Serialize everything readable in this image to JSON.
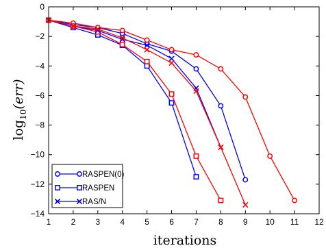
{
  "chart_data": {
    "type": "line",
    "title": "",
    "xlabel": "iterations",
    "ylabel": "log10(err)",
    "ylabel_parts": {
      "base": "log",
      "sub": "10",
      "arg": "(err)"
    },
    "xlim": [
      1,
      12
    ],
    "ylim": [
      -14,
      0
    ],
    "x_ticks": [
      1,
      2,
      3,
      4,
      5,
      6,
      7,
      8,
      9,
      10,
      11,
      12
    ],
    "y_ticks": [
      0,
      -2,
      -4,
      -6,
      -8,
      -10,
      -12,
      -14
    ],
    "grid": false,
    "legend_position": "bottom-left",
    "legend": [
      {
        "label": "RASPEN(0)",
        "color": "#0000ff",
        "marker": "circle"
      },
      {
        "label": "RASPEN",
        "color": "#0000ff",
        "marker": "square"
      },
      {
        "label": "RAS/N",
        "color": "#0000ff",
        "marker": "x"
      }
    ],
    "series": [
      {
        "name": "RASPEN(0)",
        "color": "#0000ff",
        "marker": "circle",
        "x": [
          1,
          2,
          3,
          4,
          5,
          6,
          7,
          8,
          9
        ],
        "y": [
          -0.9,
          -1.2,
          -1.4,
          -1.8,
          -2.5,
          -3.0,
          -4.2,
          -6.7,
          -11.7
        ]
      },
      {
        "name": "",
        "color": "#ff0000",
        "marker": "circle",
        "x": [
          1,
          2,
          3,
          4,
          5,
          6,
          7,
          8,
          9,
          10,
          11
        ],
        "y": [
          -0.9,
          -1.1,
          -1.4,
          -1.6,
          -2.25,
          -2.9,
          -3.25,
          -4.2,
          -6.1,
          -10.1,
          -13.1
        ]
      },
      {
        "name": "RASPEN",
        "color": "#0000ff",
        "marker": "square",
        "x": [
          1,
          2,
          3,
          4,
          5,
          6,
          7
        ],
        "y": [
          -0.9,
          -1.4,
          -1.9,
          -2.6,
          -4.0,
          -6.5,
          -11.5
        ]
      },
      {
        "name": "",
        "color": "#ff0000",
        "marker": "square",
        "x": [
          1,
          2,
          3,
          4,
          5,
          6,
          7,
          8
        ],
        "y": [
          -0.9,
          -1.3,
          -1.7,
          -2.55,
          -3.7,
          -5.9,
          -10.1,
          -13.1
        ]
      },
      {
        "name": "RAS/N",
        "color": "#0000ff",
        "marker": "x",
        "x": [
          1,
          2,
          3,
          4,
          5,
          6,
          7,
          8
        ],
        "y": [
          -0.9,
          -1.3,
          -1.6,
          -2.2,
          -2.6,
          -3.5,
          -5.5,
          -9.5
        ]
      },
      {
        "name": "",
        "color": "#ff0000",
        "marker": "x",
        "x": [
          1,
          2,
          3,
          4,
          5,
          6,
          7,
          8,
          9
        ],
        "y": [
          -0.9,
          -1.3,
          -1.5,
          -2.1,
          -2.9,
          -3.8,
          -5.7,
          -9.5,
          -13.4
        ]
      }
    ]
  }
}
